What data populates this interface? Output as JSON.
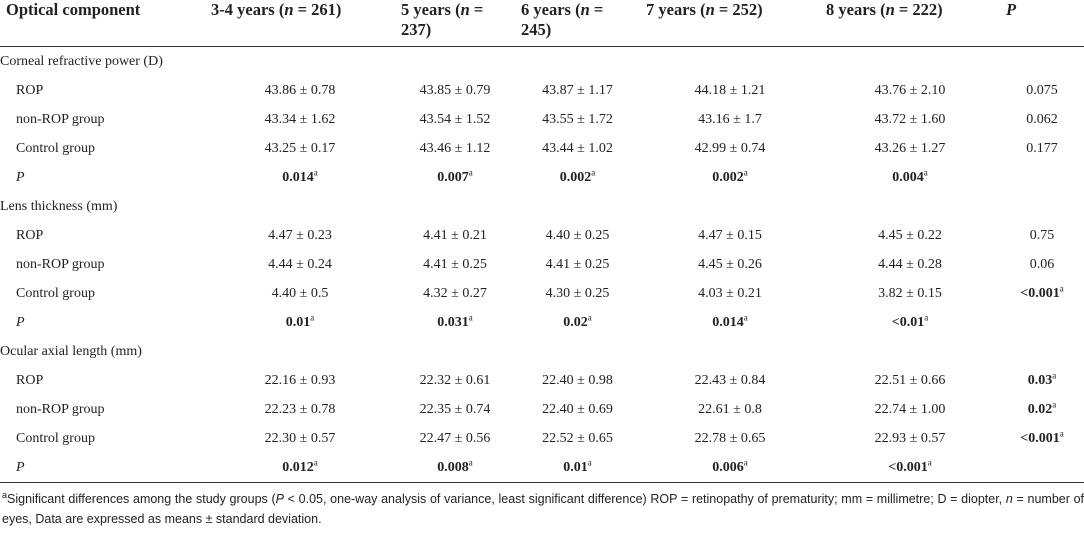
{
  "table": {
    "header": [
      [
        {
          "t": "Optical component"
        }
      ],
      [
        {
          "t": "3-4 years ("
        },
        {
          "t": "n",
          "i": true
        },
        {
          "t": " = 261)"
        }
      ],
      [
        {
          "t": "5 years ("
        },
        {
          "t": "n",
          "i": true
        },
        {
          "t": " = 237)"
        }
      ],
      [
        {
          "t": "6 years ("
        },
        {
          "t": "n",
          "i": true
        },
        {
          "t": " = 245)"
        }
      ],
      [
        {
          "t": "7 years ("
        },
        {
          "t": "n",
          "i": true
        },
        {
          "t": " = 252)"
        }
      ],
      [
        {
          "t": "8 years ("
        },
        {
          "t": "n",
          "i": true
        },
        {
          "t": " = 222)"
        }
      ],
      [
        {
          "t": "P",
          "i": true
        }
      ]
    ],
    "sections": [
      {
        "title": "Corneal refractive power (D)",
        "rows": [
          {
            "label": "ROP",
            "cells": [
              "43.86 ± 0.78",
              "43.85 ± 0.79",
              "43.87 ± 1.17",
              "44.18 ± 1.21",
              "43.76 ± 2.10",
              "0.075"
            ]
          },
          {
            "label": "non-ROP group",
            "cells": [
              "43.34 ± 1.62",
              "43.54 ± 1.52",
              "43.55 ± 1.72",
              "43.16 ± 1.7",
              "43.72 ± 1.60",
              "0.062"
            ]
          },
          {
            "label": "Control group",
            "cells": [
              "43.25 ± 0.17",
              "43.46 ± 1.12",
              "43.44 ± 1.02",
              "42.99 ± 0.74",
              "43.26 ± 1.27",
              "0.177"
            ]
          },
          {
            "label": "P",
            "italic_label": true,
            "cells": [
              {
                "v": "0.014",
                "sup": "a"
              },
              {
                "v": "0.007",
                "sup": "a"
              },
              {
                "v": "0.002",
                "sup": "a"
              },
              {
                "v": "0.002",
                "sup": "a"
              },
              {
                "v": "0.004",
                "sup": "a"
              },
              null
            ]
          }
        ]
      },
      {
        "title": "Lens thickness (mm)",
        "rows": [
          {
            "label": "ROP",
            "cells": [
              "4.47 ± 0.23",
              "4.41 ± 0.21",
              "4.40 ± 0.25",
              "4.47 ± 0.15",
              "4.45 ± 0.22",
              "0.75"
            ]
          },
          {
            "label": "non-ROP group",
            "cells": [
              "4.44 ± 0.24",
              "4.41 ± 0.25",
              "4.41 ± 0.25",
              "4.45 ± 0.26",
              "4.44 ± 0.28",
              "0.06"
            ]
          },
          {
            "label": "Control group",
            "cells": [
              "4.40 ± 0.5",
              "4.32 ± 0.27",
              "4.30 ± 0.25",
              "4.03 ± 0.21",
              "3.82 ± 0.15",
              {
                "v": "<0.001",
                "sup": "a"
              }
            ]
          },
          {
            "label": "P",
            "italic_label": true,
            "cells": [
              {
                "v": "0.01",
                "sup": "a"
              },
              {
                "v": "0.031",
                "sup": "a"
              },
              {
                "v": "0.02",
                "sup": "a"
              },
              {
                "v": "0.014",
                "sup": "a"
              },
              {
                "v": "<0.01",
                "sup": "a"
              },
              null
            ]
          }
        ]
      },
      {
        "title": "Ocular axial length (mm)",
        "rows": [
          {
            "label": "ROP",
            "cells": [
              "22.16 ± 0.93",
              "22.32 ± 0.61",
              "22.40 ± 0.98",
              "22.43 ± 0.84",
              "22.51 ± 0.66",
              {
                "v": "0.03",
                "sup": "a"
              }
            ]
          },
          {
            "label": "non-ROP group",
            "cells": [
              "22.23 ± 0.78",
              "22.35 ± 0.74",
              "22.40 ± 0.69",
              "22.61 ± 0.8",
              "22.74 ± 1.00",
              {
                "v": "0.02",
                "sup": "a"
              }
            ]
          },
          {
            "label": "Control group",
            "cells": [
              "22.30 ± 0.57",
              "22.47 ± 0.56",
              "22.52 ± 0.65",
              "22.78 ± 0.65",
              "22.93 ± 0.57",
              {
                "v": "<0.001",
                "sup": "a"
              }
            ]
          },
          {
            "label": "P",
            "italic_label": true,
            "cells": [
              {
                "v": "0.012",
                "sup": "a"
              },
              {
                "v": "0.008",
                "sup": "a"
              },
              {
                "v": "0.01",
                "sup": "a"
              },
              {
                "v": "0.006",
                "sup": "a"
              },
              {
                "v": "<0.001",
                "sup": "a"
              },
              null
            ]
          }
        ]
      }
    ]
  },
  "footnote": {
    "mark": "a",
    "parts": [
      {
        "t": "Significant differences among the study groups ("
      },
      {
        "t": "P",
        "i": true
      },
      {
        "t": " < 0.05, one-way analysis of variance, least significant difference) ROP = retinopathy of prematurity; mm = millimetre; D = diopter, "
      },
      {
        "t": "n",
        "i": true
      },
      {
        "t": " = number of eyes, Data are expressed as means ± standard deviation."
      }
    ]
  }
}
